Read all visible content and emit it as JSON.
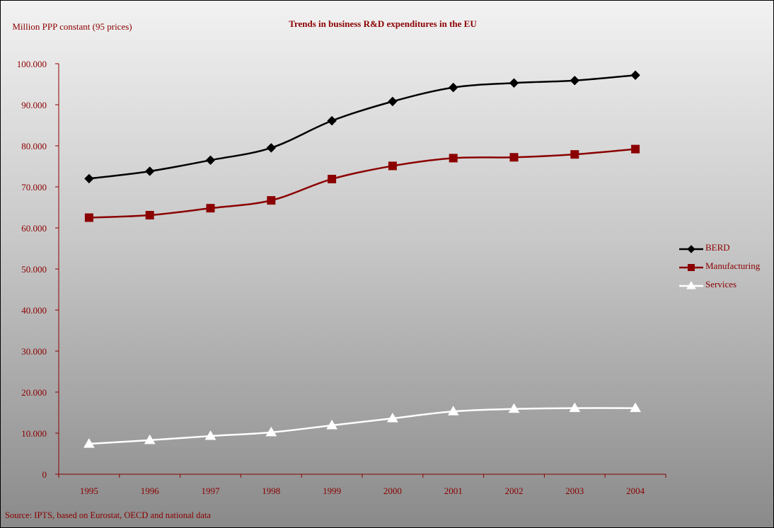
{
  "chart_data": {
    "type": "line",
    "title": "Trends in business R&D expenditures in the EU",
    "ylabel": "Million PPP constant (95 prices)",
    "xlabel": "",
    "source": "Source: IPTS, based on Eurostat, OECD and national data",
    "categories": [
      "1995",
      "1996",
      "1997",
      "1998",
      "1999",
      "2000",
      "2001",
      "2002",
      "2003",
      "2004"
    ],
    "ylim": [
      0,
      100000
    ],
    "yticks": [
      0,
      10000,
      20000,
      30000,
      40000,
      50000,
      60000,
      70000,
      80000,
      90000,
      100000
    ],
    "ytick_labels": [
      "0",
      "10.000",
      "20.000",
      "30.000",
      "40.000",
      "50.000",
      "60.000",
      "70.000",
      "80.000",
      "90.000",
      "100.000"
    ],
    "grid": false,
    "legend_position": "right",
    "series": [
      {
        "name": "BERD",
        "color": "#000000",
        "marker": "diamond",
        "values": [
          72000,
          73800,
          76500,
          79500,
          86100,
          90800,
          94200,
          95300,
          95900,
          97200
        ]
      },
      {
        "name": "Manufacturing",
        "color": "#8b0000",
        "marker": "square",
        "values": [
          62500,
          63100,
          64800,
          66700,
          71900,
          75100,
          77000,
          77200,
          77900,
          79200
        ]
      },
      {
        "name": "Services",
        "color": "#ffffff",
        "marker": "triangle",
        "values": [
          7400,
          8300,
          9300,
          10200,
          11900,
          13600,
          15300,
          15900,
          16100,
          16100
        ]
      }
    ]
  }
}
